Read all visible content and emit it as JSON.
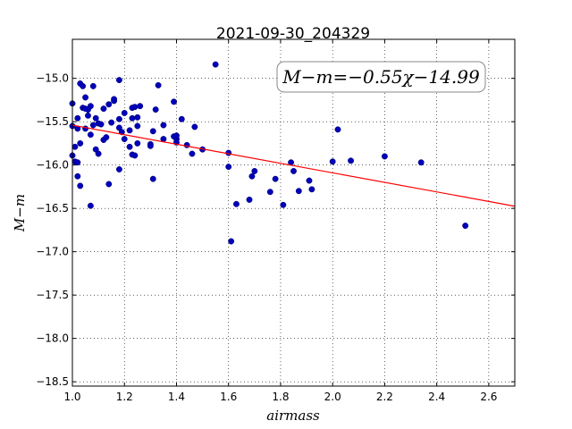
{
  "chart_data": {
    "type": "scatter",
    "title": "2021-09-30_204329",
    "xlabel": "airmass",
    "ylabel": "M−m",
    "xlim": [
      1.0,
      2.7
    ],
    "ylim": [
      -18.55,
      -14.55
    ],
    "y_inverted": true,
    "grid": true,
    "x_ticks": [
      1.0,
      1.2,
      1.4,
      1.6,
      1.8,
      2.0,
      2.2,
      2.4,
      2.6
    ],
    "x_tick_labels": [
      "1.0",
      "1.2",
      "1.4",
      "1.6",
      "1.8",
      "2.0",
      "2.2",
      "2.4",
      "2.6"
    ],
    "y_ticks": [
      -15.0,
      -15.5,
      -16.0,
      -16.5,
      -17.0,
      -17.5,
      -18.0,
      -18.5
    ],
    "y_tick_labels": [
      "−15.0",
      "−15.5",
      "−16.0",
      "−16.5",
      "−17.0",
      "−17.5",
      "−18.0",
      "−18.5"
    ],
    "annotation": "M−m=−0.55χ−14.99",
    "fit": {
      "slope": -0.55,
      "intercept": -14.99,
      "color": "#ff0000"
    },
    "series": [
      {
        "marker_color": "#0000bb",
        "points": [
          [
            1.0,
            -15.29
          ],
          [
            1.0,
            -15.55
          ],
          [
            1.0,
            -15.89
          ],
          [
            1.01,
            -15.79
          ],
          [
            1.01,
            -15.96
          ],
          [
            1.02,
            -16.13
          ],
          [
            1.02,
            -15.97
          ],
          [
            1.02,
            -15.58
          ],
          [
            1.02,
            -15.46
          ],
          [
            1.03,
            -15.75
          ],
          [
            1.03,
            -16.24
          ],
          [
            1.03,
            -15.06
          ],
          [
            1.04,
            -15.09
          ],
          [
            1.04,
            -15.34
          ],
          [
            1.05,
            -15.35
          ],
          [
            1.05,
            -15.58
          ],
          [
            1.05,
            -15.22
          ],
          [
            1.06,
            -15.43
          ],
          [
            1.06,
            -15.36
          ],
          [
            1.07,
            -15.32
          ],
          [
            1.07,
            -15.65
          ],
          [
            1.07,
            -16.47
          ],
          [
            1.08,
            -15.09
          ],
          [
            1.08,
            -15.54
          ],
          [
            1.09,
            -15.46
          ],
          [
            1.09,
            -15.82
          ],
          [
            1.1,
            -15.52
          ],
          [
            1.1,
            -15.87
          ],
          [
            1.11,
            -15.53
          ],
          [
            1.12,
            -15.35
          ],
          [
            1.12,
            -15.71
          ],
          [
            1.13,
            -15.68
          ],
          [
            1.14,
            -15.3
          ],
          [
            1.14,
            -16.22
          ],
          [
            1.15,
            -15.51
          ],
          [
            1.16,
            -15.26
          ],
          [
            1.16,
            -15.24
          ],
          [
            1.18,
            -16.05
          ],
          [
            1.18,
            -15.02
          ],
          [
            1.18,
            -15.57
          ],
          [
            1.18,
            -15.47
          ],
          [
            1.19,
            -15.62
          ],
          [
            1.2,
            -15.4
          ],
          [
            1.2,
            -15.7
          ],
          [
            1.22,
            -15.79
          ],
          [
            1.22,
            -15.6
          ],
          [
            1.23,
            -15.46
          ],
          [
            1.23,
            -15.88
          ],
          [
            1.23,
            -15.34
          ],
          [
            1.24,
            -15.89
          ],
          [
            1.24,
            -15.33
          ],
          [
            1.25,
            -15.45
          ],
          [
            1.25,
            -15.55
          ],
          [
            1.25,
            -15.75
          ],
          [
            1.26,
            -15.32
          ],
          [
            1.3,
            -15.76
          ],
          [
            1.3,
            -15.78
          ],
          [
            1.31,
            -16.16
          ],
          [
            1.31,
            -15.61
          ],
          [
            1.32,
            -15.36
          ],
          [
            1.33,
            -15.08
          ],
          [
            1.35,
            -15.54
          ],
          [
            1.35,
            -15.7
          ],
          [
            1.39,
            -15.27
          ],
          [
            1.39,
            -15.67
          ],
          [
            1.4,
            -15.7
          ],
          [
            1.4,
            -15.74
          ],
          [
            1.4,
            -15.66
          ],
          [
            1.42,
            -15.47
          ],
          [
            1.44,
            -15.77
          ],
          [
            1.46,
            -15.87
          ],
          [
            1.47,
            -15.56
          ],
          [
            1.5,
            -15.82
          ],
          [
            1.55,
            -14.84
          ],
          [
            1.6,
            -15.86
          ],
          [
            1.6,
            -16.02
          ],
          [
            1.61,
            -16.88
          ],
          [
            1.63,
            -16.45
          ],
          [
            1.68,
            -16.4
          ],
          [
            1.69,
            -16.13
          ],
          [
            1.7,
            -16.07
          ],
          [
            1.76,
            -16.31
          ],
          [
            1.78,
            -16.16
          ],
          [
            1.81,
            -16.46
          ],
          [
            1.84,
            -15.97
          ],
          [
            1.85,
            -16.07
          ],
          [
            1.87,
            -16.3
          ],
          [
            1.91,
            -16.18
          ],
          [
            1.92,
            -16.28
          ],
          [
            2.0,
            -15.96
          ],
          [
            2.02,
            -15.59
          ],
          [
            2.07,
            -15.95
          ],
          [
            2.2,
            -15.9
          ],
          [
            2.34,
            -15.97
          ],
          [
            2.51,
            -16.7
          ]
        ]
      }
    ]
  }
}
